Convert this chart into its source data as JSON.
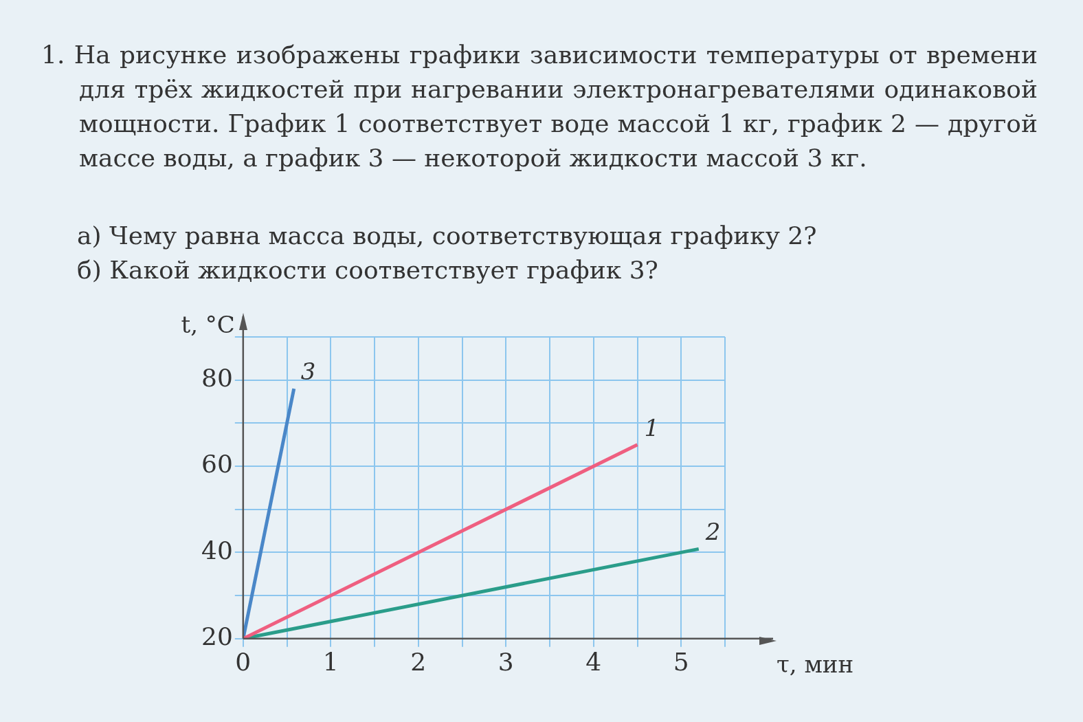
{
  "chart_data": {
    "type": "line",
    "title": "1. На рисунке изображены графики зависимости температуры от времени для трёх жидкостей при нагревании электронагревателями одинаковой мощности. График 1 соответствует воде массой 1 кг, график 2 — другой массе воды, а график 3 — некоторой жидкости массой 3 кг.",
    "annotations": [
      "а) Чему равна масса воды, соответствующая графику 2?",
      "б) Какой жидкости соответствует график 3?"
    ],
    "xlabel": "τ, мин",
    "ylabel": "t, °C",
    "series": [
      {
        "name": "1",
        "color": "#ef5f80",
        "x": [
          0,
          4.5
        ],
        "values": [
          20,
          65
        ]
      },
      {
        "name": "2",
        "color": "#2a9d8a",
        "x": [
          0,
          5.2
        ],
        "values": [
          20,
          40.8
        ]
      },
      {
        "name": "3",
        "color": "#4a87c8",
        "x": [
          0,
          0.58
        ],
        "values": [
          20,
          78
        ]
      }
    ],
    "xlim": [
      0,
      5.5
    ],
    "ylim": [
      20,
      90
    ],
    "xticks": [
      0,
      {
        "value": 0.5,
        "label": null
      },
      1,
      {
        "value": 1.5,
        "label": null
      },
      2,
      {
        "value": 2.5,
        "label": null
      },
      3,
      {
        "value": 3.5,
        "label": null
      },
      4,
      {
        "value": 4.5,
        "label": null
      },
      5,
      {
        "value": 5.5,
        "label": null
      }
    ],
    "yticks": [
      20,
      {
        "value": 30,
        "label": null
      },
      40,
      {
        "value": 50,
        "label": null
      },
      60,
      {
        "value": 70,
        "label": null
      },
      80,
      {
        "value": 90,
        "label": null
      }
    ],
    "grid": true,
    "legend": false,
    "marker": "none",
    "line_style": "solid"
  }
}
